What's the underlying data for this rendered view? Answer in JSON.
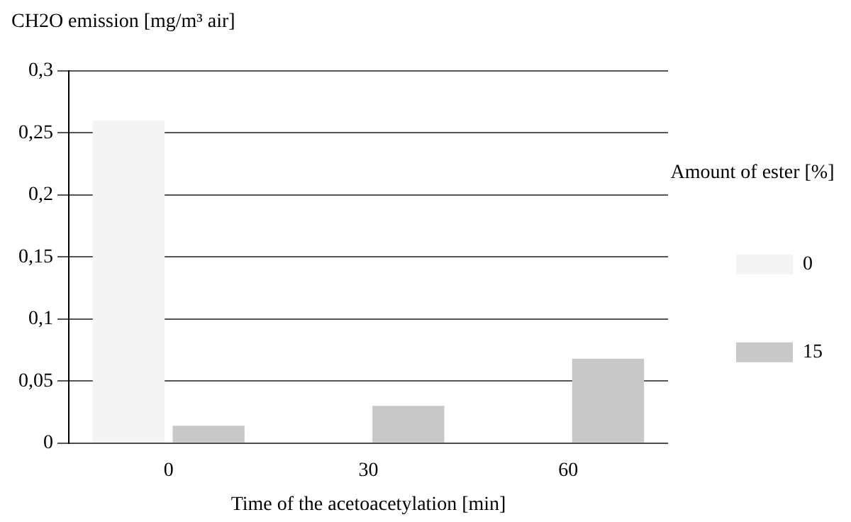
{
  "chart_data": {
    "type": "bar",
    "xlabel": "Time of the acetoacetylation [min]",
    "ylabel": "CH2O emission [mg/m³ air]",
    "legend_title": "Amount of ester [%]",
    "categories": [
      "0",
      "30",
      "60"
    ],
    "series": [
      {
        "name": "0",
        "color": "#f4f4f4",
        "values": [
          0.26,
          null,
          null
        ]
      },
      {
        "name": "15",
        "color": "#c8c8c8",
        "values": [
          0.014,
          0.03,
          0.068
        ]
      }
    ],
    "ylim": [
      0,
      0.3
    ],
    "yticks": [
      0,
      {
        "value": 0.05,
        "label": "0,05"
      },
      {
        "value": 0.1,
        "label": "0,1"
      },
      {
        "value": 0.15,
        "label": "0,15"
      },
      {
        "value": 0.2,
        "label": "0,2"
      },
      {
        "value": 0.25,
        "label": "0,25"
      },
      {
        "value": 0.3,
        "label": "0,3"
      }
    ],
    "grid": "y",
    "legend": "right"
  }
}
